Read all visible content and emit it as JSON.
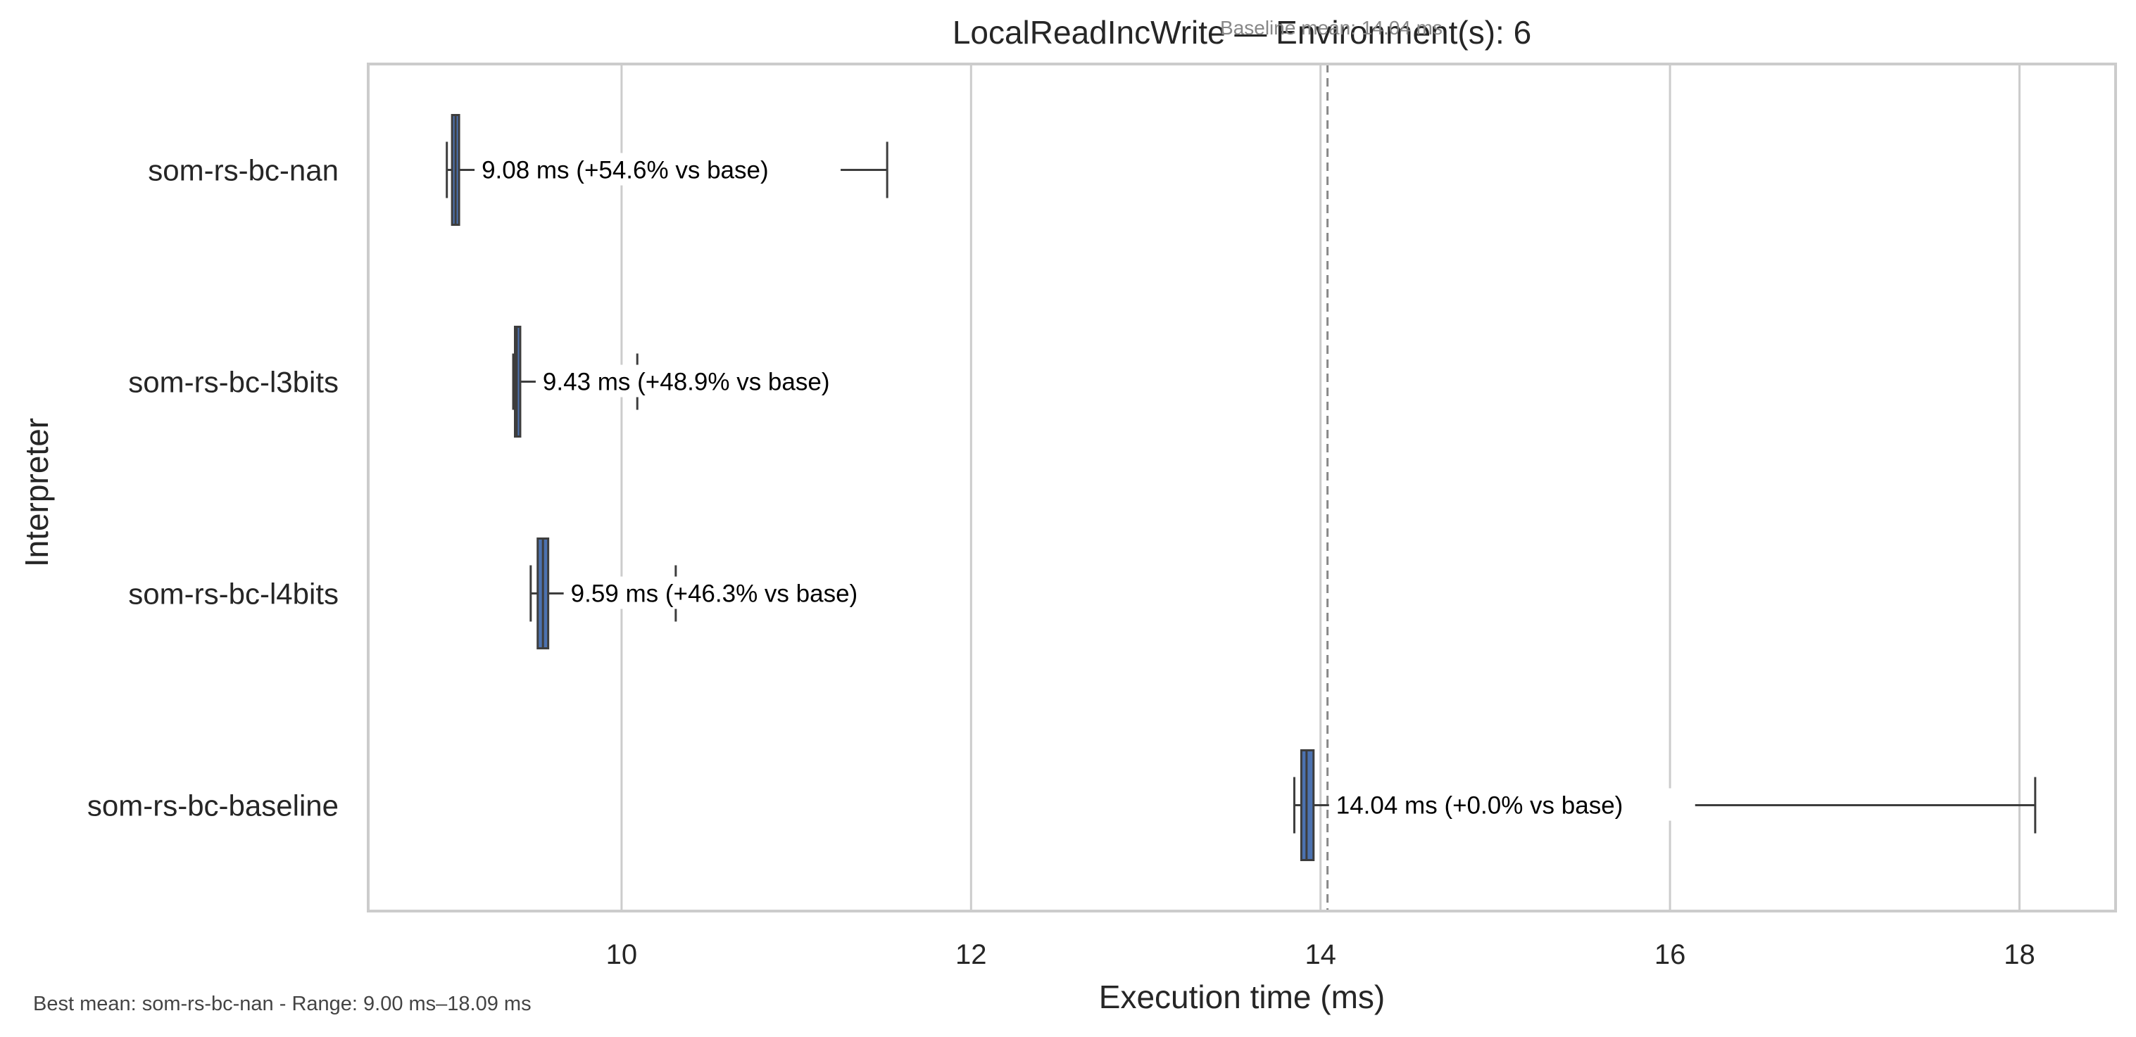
{
  "chart_data": {
    "type": "boxplot",
    "orientation": "horizontal",
    "title": "LocalReadIncWrite — Environment(s): 6",
    "overlay_text": "Baseline mean: 14.04 ms",
    "xlabel": "Execution time (ms)",
    "ylabel": "Interpreter",
    "xlim": [
      8.55,
      18.55
    ],
    "xticks": [
      10,
      12,
      14,
      16,
      18
    ],
    "grid": true,
    "baseline_mean": 14.04,
    "categories": [
      "som-rs-bc-nan",
      "som-rs-bc-l3bits",
      "som-rs-bc-l4bits",
      "som-rs-bc-baseline"
    ],
    "series": [
      {
        "category": "som-rs-bc-nan",
        "mean": 9.08,
        "label": "9.08 ms  (+54.6% vs base)",
        "whisker_low": 9.0,
        "q1": 9.03,
        "median": 9.05,
        "q3": 9.07,
        "whisker_high": 11.52
      },
      {
        "category": "som-rs-bc-l3bits",
        "mean": 9.43,
        "label": "9.43 ms  (+48.9% vs base)",
        "whisker_low": 9.38,
        "q1": 9.39,
        "median": 9.4,
        "q3": 9.42,
        "whisker_high": 10.09
      },
      {
        "category": "som-rs-bc-l4bits",
        "mean": 9.59,
        "label": "9.59 ms  (+46.3% vs base)",
        "whisker_low": 9.48,
        "q1": 9.52,
        "median": 9.55,
        "q3": 9.58,
        "whisker_high": 10.31
      },
      {
        "category": "som-rs-bc-baseline",
        "mean": 14.04,
        "label": "14.04 ms  (+0.0% vs base)",
        "whisker_low": 13.85,
        "q1": 13.89,
        "median": 13.92,
        "q3": 13.96,
        "whisker_high": 18.09
      }
    ],
    "footer": "Best mean: som-rs-bc-nan - Range: 9.00 ms–18.09 ms"
  },
  "colors": {
    "box_fill": "#4c72b0",
    "box_edge": "#3d3d3d",
    "whisker": "#3d3d3d",
    "grid": "#cccccc",
    "frame": "#cccccc",
    "baseline_line": "#888888",
    "text": "#262626",
    "label_text": "#000000",
    "footer_text": "#444444"
  }
}
